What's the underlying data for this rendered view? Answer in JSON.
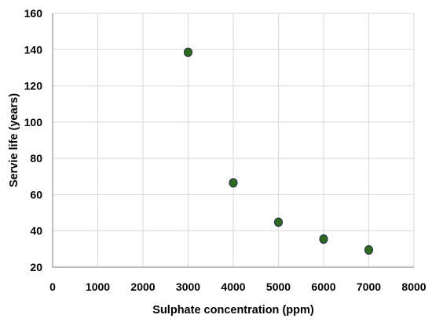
{
  "chart_data": {
    "type": "scatter",
    "title": "",
    "xlabel": "Sulphate  concentration (ppm)",
    "ylabel": "Servie  life (years)",
    "xlim": [
      0,
      8000
    ],
    "ylim": [
      20,
      160
    ],
    "xticks": [
      0,
      1000,
      2000,
      3000,
      4000,
      5000,
      6000,
      7000,
      8000
    ],
    "yticks": [
      20,
      40,
      60,
      80,
      100,
      120,
      140,
      160
    ],
    "xtick_labels": [
      "0",
      "1000",
      "2000",
      "3000",
      "4000",
      "5000",
      "6000",
      "7000",
      "8000"
    ],
    "ytick_labels": [
      "20",
      "40",
      "60",
      "80",
      "100",
      "120",
      "140",
      "160"
    ],
    "grid": true,
    "legend": "none",
    "marker_color": "#2e6b1f",
    "marker_edge_color": "#1a2a4a",
    "series": [
      {
        "x": [
          3000,
          4000,
          5000,
          6000,
          7000
        ],
        "y": [
          138.5,
          66.5,
          44.8,
          35.5,
          29.5
        ]
      }
    ]
  }
}
